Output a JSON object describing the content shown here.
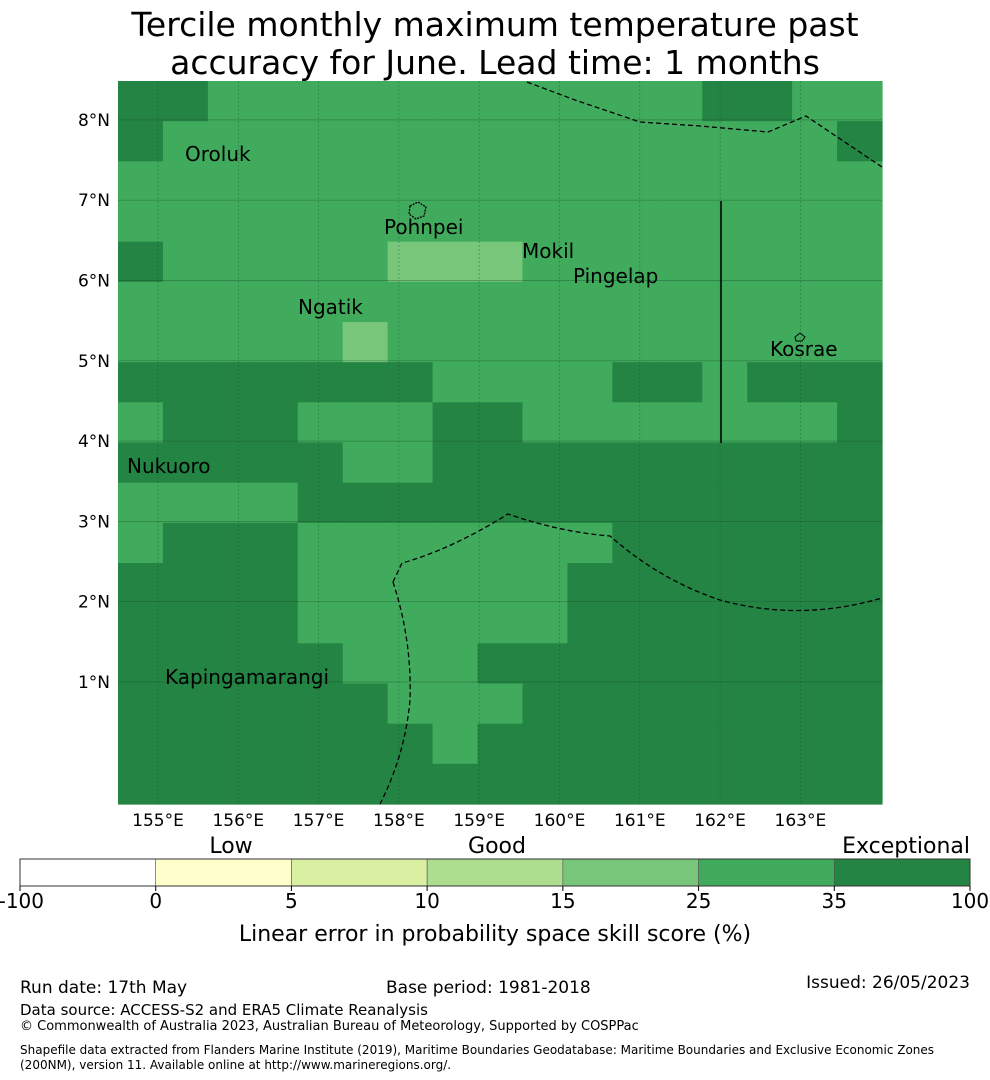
{
  "title": {
    "line1": "Tercile monthly maximum temperature past",
    "line2": "accuracy for June. Lead time: 1 months"
  },
  "map": {
    "lon_ticks": [
      "155°E",
      "156°E",
      "157°E",
      "158°E",
      "159°E",
      "160°E",
      "161°E",
      "162°E",
      "163°E"
    ],
    "lat_ticks": [
      "1°N",
      "2°N",
      "3°N",
      "4°N",
      "5°N",
      "6°N",
      "7°N",
      "8°N"
    ],
    "places": [
      {
        "name": "Oroluk",
        "lon": 155.3,
        "lat": 7.6
      },
      {
        "name": "Pohnpei",
        "lon": 158.2,
        "lat": 6.9
      },
      {
        "name": "Mokil",
        "lon": 159.9,
        "lat": 6.7
      },
      {
        "name": "Pingelap",
        "lon": 160.7,
        "lat": 6.2
      },
      {
        "name": "Ngatik",
        "lon": 157.3,
        "lat": 5.8
      },
      {
        "name": "Kosrae",
        "lon": 163.0,
        "lat": 5.3
      },
      {
        "name": "Nukuoro",
        "lon": 154.8,
        "lat": 3.8
      },
      {
        "name": "Kapingamarangi",
        "lon": 154.8,
        "lat": 1.1
      }
    ],
    "grid": {
      "lon0": 154.5,
      "lat0": 8.5,
      "step": 0.8333,
      "legend_classes": [
        "#f4f4f4",
        "#ffffcc",
        "#d9f0a3",
        "#addd8e",
        "#78c679",
        "#41ab5d",
        "#238443"
      ],
      "rows": [
        "66555555555556655",
        "65555555555555556",
        "55555555555555555",
        "55555555555555555",
        "65555544455555555",
        "55555555555555555",
        "55555455555555555",
        "66666665555665666",
        "56665556655555556",
        "66666556666666666",
        "55556666666666666",
        "56665555555666666",
        "66665555556666666",
        "66665555556666666",
        "66666555666666666",
        "66666655566666666",
        "66666665666666666",
        "66666666666666666"
      ]
    }
  },
  "legend": {
    "categories": [
      "Low",
      "Good",
      "Exceptional"
    ],
    "ticks": [
      "-100",
      "0",
      "5",
      "10",
      "15",
      "25",
      "35",
      "100"
    ],
    "colors": [
      "#ffffff",
      "#ffffcc",
      "#d9f0a3",
      "#addd8e",
      "#78c679",
      "#41ab5d",
      "#238443"
    ],
    "label": "Linear error in probability space skill score (%)"
  },
  "footer": {
    "run_date": "Run date: 17th May",
    "base_period": "Base period: 1981-2018",
    "issued": "Issued: 26/05/2023",
    "data_source": "Data source: ACCESS-S2 and ERA5 Climate Reanalysis",
    "copyright": "© Commonwealth of Australia 2023, Australian Bureau of Meteorology, Supported by COSPPac",
    "shapefile": "Shapefile data extracted from Flanders Marine Institute (2019), Maritime Boundaries Geodatabase: Maritime Boundaries and Exclusive Economic Zones (200NM), version 11. Available online at http://www.marineregions.org/."
  }
}
